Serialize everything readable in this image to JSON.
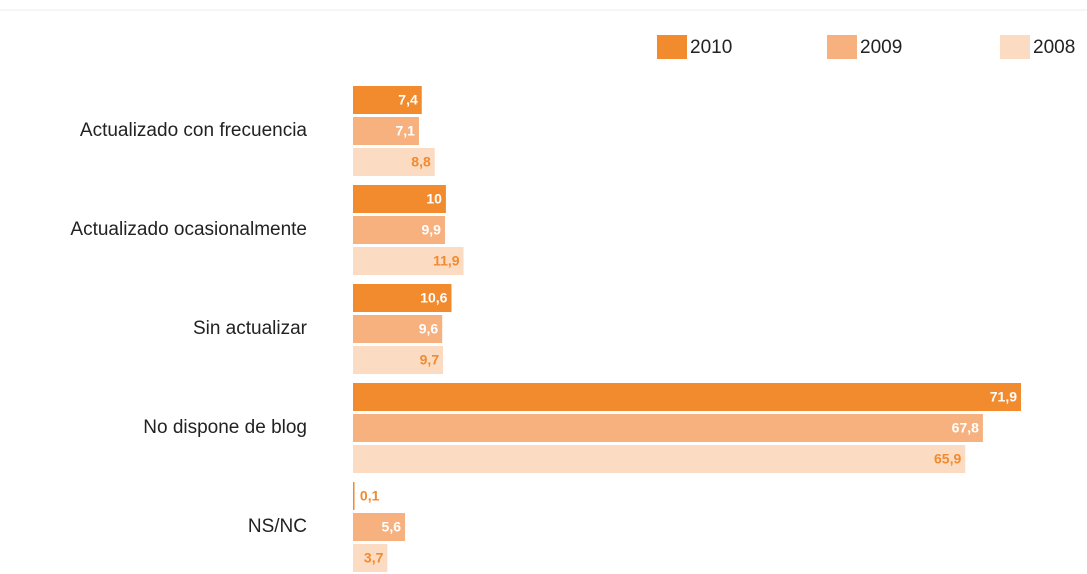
{
  "chart_data": {
    "type": "bar",
    "orientation": "horizontal",
    "categories": [
      "Actualizado con frecuencia",
      "Actualizado ocasionalmente",
      "Sin actualizar",
      "No dispone de blog",
      "NS/NC"
    ],
    "series": [
      {
        "name": "2010",
        "color": "#f28a2e",
        "label_color": "#ffffff",
        "values": [
          7.4,
          10,
          10.6,
          71.9,
          0.1
        ],
        "value_labels": [
          "7,4",
          "10",
          "10,6",
          "71,9",
          "0,1"
        ]
      },
      {
        "name": "2009",
        "color": "#f6b17f",
        "label_color": "#ffffff",
        "values": [
          7.1,
          9.9,
          9.6,
          67.8,
          5.6
        ],
        "value_labels": [
          "7,1",
          "9,9",
          "9,6",
          "67,8",
          "5,6"
        ]
      },
      {
        "name": "2008",
        "color": "#fbdcc3",
        "label_color": "#f28a2e",
        "values": [
          8.8,
          11.9,
          9.7,
          65.9,
          3.7
        ],
        "value_labels": [
          "8,8",
          "11,9",
          "9,7",
          "65,9",
          "3,7"
        ]
      }
    ],
    "legend": "top-right"
  }
}
